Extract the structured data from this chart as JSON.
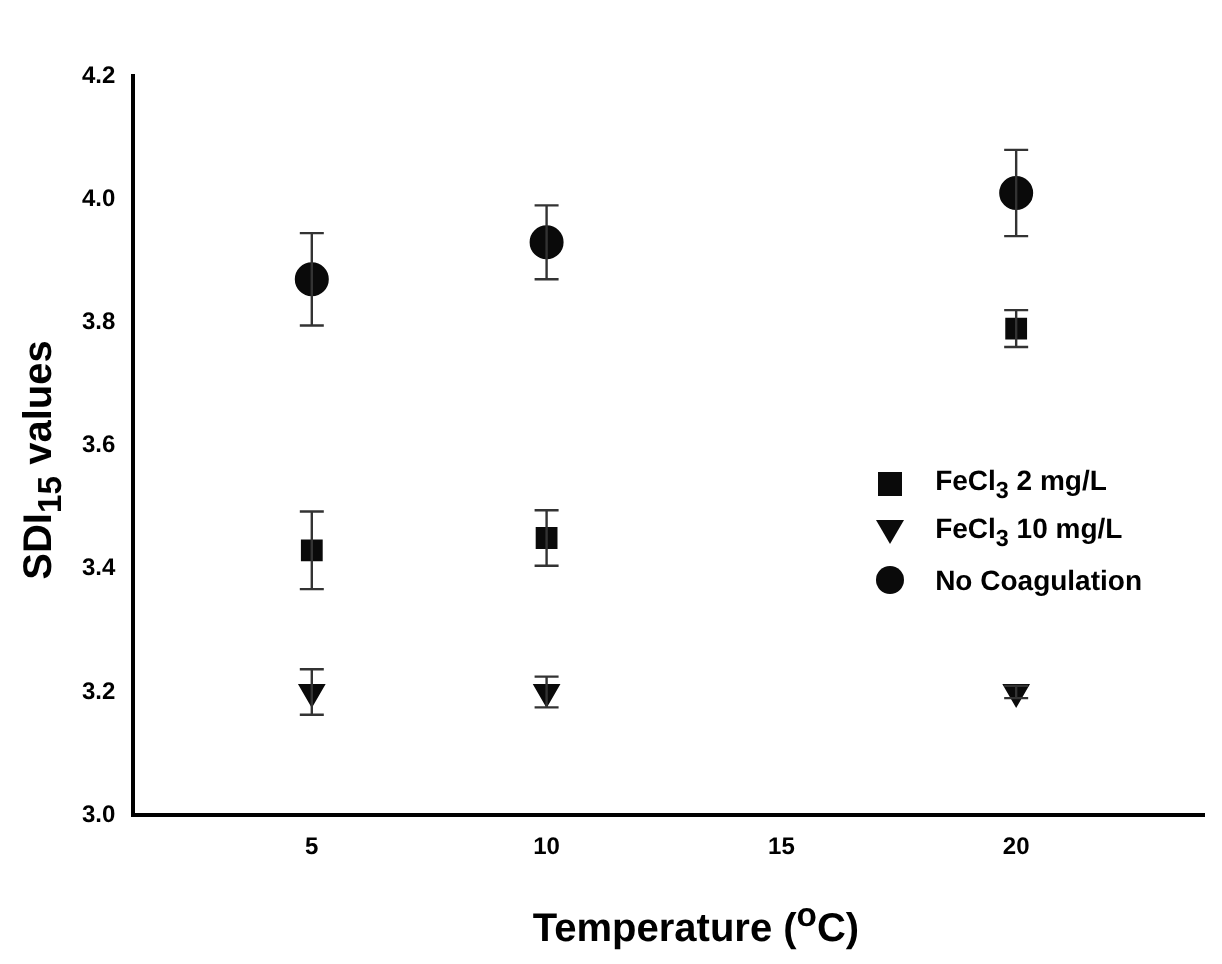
{
  "chart_data": {
    "type": "scatter",
    "xlabel": "Temperature ($^{o}$C)",
    "ylabel": "SDI$_{15}$ values",
    "x": [
      5,
      10,
      20
    ],
    "xlim": [
      1.2,
      24
    ],
    "xticks": [
      5,
      10,
      15,
      20
    ],
    "ylim": [
      3.0,
      4.2
    ],
    "yticks": [
      {
        "value": 3,
        "label": "3.0"
      },
      3.2,
      3.4,
      3.6,
      3.8,
      {
        "value": 4,
        "label": "4.0"
      },
      4.2
    ],
    "grid": false,
    "legend": "right",
    "series": [
      {
        "name": "FeCl$_{3}$ 2 mg/L",
        "color": "#0a0a0a",
        "marker": "square",
        "values": [
          3.43,
          3.45,
          3.79
        ],
        "errors": [
          0.063,
          0.045,
          0.03
        ]
      },
      {
        "name": "FeCl$_{3}$ 10 mg/L",
        "color": "#0a0a0a",
        "marker": "triangle",
        "values": [
          3.2,
          3.2,
          3.2
        ],
        "errors": [
          0.037,
          0.025,
          0.01
        ]
      },
      {
        "name": "No Coagulation",
        "color": "#0a0a0a",
        "marker": "circle",
        "values": [
          3.87,
          3.93,
          4.01
        ],
        "errors": [
          0.075,
          0.06,
          0.07
        ]
      }
    ]
  }
}
